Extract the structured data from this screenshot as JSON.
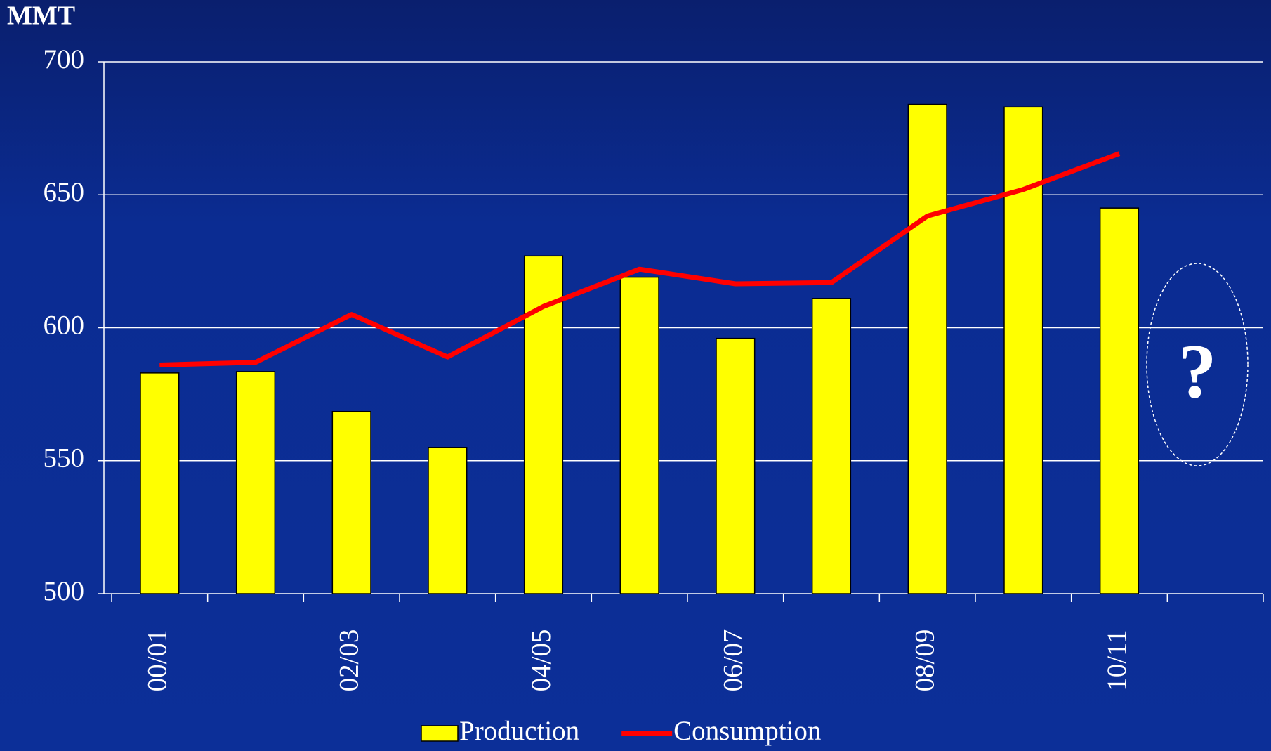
{
  "chart_data": {
    "type": "bar",
    "y_label": "MMT",
    "categories": [
      "00/01",
      null,
      "02/03",
      null,
      "04/05",
      null,
      "06/07",
      null,
      "08/09",
      null,
      "10/11",
      null
    ],
    "series": [
      {
        "name": "Production",
        "type": "bar",
        "color": "#ffff00",
        "values": [
          583,
          583.5,
          568.5,
          555,
          627,
          619,
          596,
          611,
          684,
          683,
          645,
          null
        ]
      },
      {
        "name": "Consumption",
        "type": "line",
        "color": "#ff0000",
        "values": [
          586,
          587,
          605,
          589,
          608,
          622,
          616.5,
          617,
          642,
          652,
          665.5,
          null
        ]
      }
    ],
    "ylim": [
      500,
      700
    ],
    "yticks": [
      500,
      550,
      600,
      650,
      700
    ],
    "grid": true,
    "annotations": [
      "?"
    ],
    "legend": "bottom"
  }
}
